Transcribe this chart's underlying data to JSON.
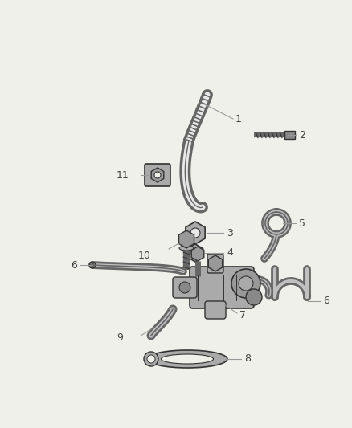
{
  "background_color": "#f0f0eb",
  "line_color": "#555555",
  "label_color": "#444444",
  "figsize": [
    4.38,
    5.33
  ],
  "dpi": 100,
  "gray": "#666666",
  "dark": "#333333",
  "light_gray": "#aaaaaa",
  "white": "#e8e8e8"
}
